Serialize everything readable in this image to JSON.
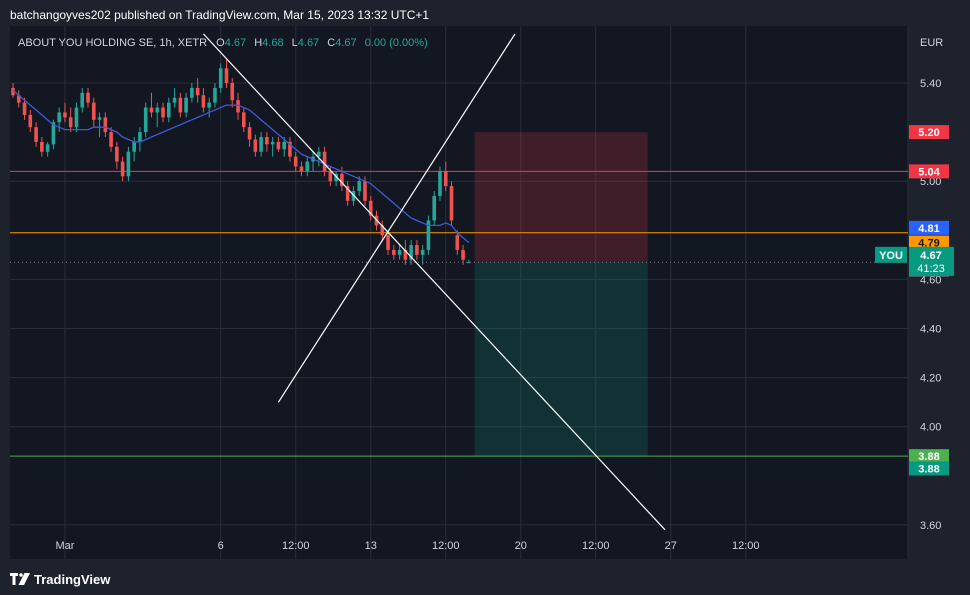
{
  "header": {
    "published": "batchangoyves202 published on TradingView.com, Mar 15, 2023 13:32 UTC+1"
  },
  "legend": {
    "symbol": "ABOUT YOU HOLDING SE, 1h, XETR",
    "o_label": "O",
    "o_value": "4.67",
    "h_label": "H",
    "h_value": "4.68",
    "l_label": "L",
    "l_value": "4.67",
    "c_label": "C",
    "c_value": "4.67",
    "change": "0.00 (0.00%)"
  },
  "footer": {
    "brand": "TradingView"
  },
  "colors": {
    "up": "#26a69a",
    "down": "#ef5350",
    "ma": "#2962ff",
    "ma_line": "#3d5bd9",
    "bg": "#131722",
    "grid": "#2a2e39"
  },
  "chart_data": {
    "type": "candlestick",
    "currency": "EUR",
    "ylim": [
      3.55,
      5.6
    ],
    "y_ticks": [
      {
        "value": 5.4,
        "label": "5.40"
      },
      {
        "value": 5.0,
        "label": "5.00"
      },
      {
        "value": 4.6,
        "label": "4.60"
      },
      {
        "value": 4.4,
        "label": "4.40"
      },
      {
        "value": 4.2,
        "label": "4.20"
      },
      {
        "value": 4.0,
        "label": "4.00"
      },
      {
        "value": 3.6,
        "label": "3.60"
      }
    ],
    "x_ticks": [
      {
        "t": 9,
        "label": "Mar"
      },
      {
        "t": 36,
        "label": "6"
      },
      {
        "t": 49,
        "label": "12:00"
      },
      {
        "t": 62,
        "label": "13"
      },
      {
        "t": 75,
        "label": "12:00"
      },
      {
        "t": 88,
        "label": "20"
      },
      {
        "t": 101,
        "label": "12:00"
      },
      {
        "t": 114,
        "label": "27"
      },
      {
        "t": 127,
        "label": "12:00"
      }
    ],
    "candles": [
      [
        5.38,
        5.4,
        5.34,
        5.35
      ],
      [
        5.35,
        5.37,
        5.3,
        5.32
      ],
      [
        5.32,
        5.34,
        5.25,
        5.27
      ],
      [
        5.27,
        5.29,
        5.2,
        5.22
      ],
      [
        5.22,
        5.24,
        5.14,
        5.16
      ],
      [
        5.16,
        5.18,
        5.1,
        5.12
      ],
      [
        5.12,
        5.16,
        5.1,
        5.15
      ],
      [
        5.15,
        5.25,
        5.13,
        5.24
      ],
      [
        5.24,
        5.3,
        5.2,
        5.28
      ],
      [
        5.28,
        5.32,
        5.24,
        5.26
      ],
      [
        5.26,
        5.3,
        5.2,
        5.22
      ],
      [
        5.22,
        5.32,
        5.2,
        5.3
      ],
      [
        5.3,
        5.38,
        5.28,
        5.36
      ],
      [
        5.36,
        5.38,
        5.3,
        5.32
      ],
      [
        5.32,
        5.34,
        5.22,
        5.25
      ],
      [
        5.25,
        5.28,
        5.18,
        5.26
      ],
      [
        5.26,
        5.28,
        5.18,
        5.2
      ],
      [
        5.2,
        5.22,
        5.12,
        5.14
      ],
      [
        5.14,
        5.16,
        5.05,
        5.08
      ],
      [
        5.08,
        5.1,
        5.0,
        5.02
      ],
      [
        5.02,
        5.14,
        5.0,
        5.12
      ],
      [
        5.12,
        5.18,
        5.08,
        5.16
      ],
      [
        5.16,
        5.22,
        5.12,
        5.2
      ],
      [
        5.2,
        5.32,
        5.18,
        5.3
      ],
      [
        5.3,
        5.36,
        5.26,
        5.28
      ],
      [
        5.28,
        5.32,
        5.22,
        5.3
      ],
      [
        5.3,
        5.32,
        5.24,
        5.26
      ],
      [
        5.26,
        5.34,
        5.24,
        5.32
      ],
      [
        5.32,
        5.38,
        5.3,
        5.34
      ],
      [
        5.34,
        5.36,
        5.26,
        5.28
      ],
      [
        5.28,
        5.36,
        5.26,
        5.34
      ],
      [
        5.34,
        5.4,
        5.32,
        5.38
      ],
      [
        5.38,
        5.42,
        5.32,
        5.35
      ],
      [
        5.35,
        5.38,
        5.28,
        5.3
      ],
      [
        5.3,
        5.34,
        5.26,
        5.32
      ],
      [
        5.32,
        5.4,
        5.3,
        5.38
      ],
      [
        5.38,
        5.48,
        5.36,
        5.46
      ],
      [
        5.46,
        5.5,
        5.38,
        5.4
      ],
      [
        5.4,
        5.42,
        5.3,
        5.33
      ],
      [
        5.33,
        5.36,
        5.25,
        5.28
      ],
      [
        5.28,
        5.3,
        5.2,
        5.22
      ],
      [
        5.22,
        5.24,
        5.14,
        5.17
      ],
      [
        5.17,
        5.19,
        5.1,
        5.12
      ],
      [
        5.12,
        5.2,
        5.1,
        5.18
      ],
      [
        5.18,
        5.2,
        5.12,
        5.15
      ],
      [
        5.15,
        5.18,
        5.1,
        5.16
      ],
      [
        5.16,
        5.18,
        5.12,
        5.13
      ],
      [
        5.13,
        5.18,
        5.1,
        5.16
      ],
      [
        5.16,
        5.18,
        5.08,
        5.1
      ],
      [
        5.1,
        5.12,
        5.04,
        5.06
      ],
      [
        5.06,
        5.08,
        5.02,
        5.04
      ],
      [
        5.04,
        5.1,
        5.02,
        5.08
      ],
      [
        5.08,
        5.12,
        5.04,
        5.1
      ],
      [
        5.1,
        5.14,
        5.06,
        5.12
      ],
      [
        5.12,
        5.14,
        5.02,
        5.04
      ],
      [
        5.04,
        5.06,
        4.98,
        5.0
      ],
      [
        5.0,
        5.04,
        4.98,
        5.03
      ],
      [
        5.03,
        5.06,
        4.96,
        4.98
      ],
      [
        4.98,
        5.0,
        4.9,
        4.92
      ],
      [
        4.92,
        4.98,
        4.9,
        4.96
      ],
      [
        4.96,
        5.02,
        4.94,
        5.0
      ],
      [
        5.0,
        5.02,
        4.9,
        4.92
      ],
      [
        4.92,
        4.94,
        4.84,
        4.86
      ],
      [
        4.86,
        4.88,
        4.8,
        4.82
      ],
      [
        4.82,
        4.84,
        4.76,
        4.78
      ],
      [
        4.78,
        4.8,
        4.7,
        4.72
      ],
      [
        4.72,
        4.74,
        4.68,
        4.7
      ],
      [
        4.7,
        4.74,
        4.68,
        4.72
      ],
      [
        4.72,
        4.76,
        4.66,
        4.68
      ],
      [
        4.68,
        4.76,
        4.66,
        4.74
      ],
      [
        4.74,
        4.76,
        4.68,
        4.7
      ],
      [
        4.7,
        4.74,
        4.66,
        4.72
      ],
      [
        4.72,
        4.86,
        4.7,
        4.84
      ],
      [
        4.84,
        4.96,
        4.82,
        4.94
      ],
      [
        4.94,
        5.06,
        4.92,
        5.04
      ],
      [
        5.04,
        5.08,
        4.96,
        4.98
      ],
      [
        4.98,
        5.0,
        4.82,
        4.84
      ],
      [
        4.78,
        4.8,
        4.7,
        4.72
      ],
      [
        4.72,
        4.74,
        4.66,
        4.68
      ],
      [
        4.67,
        4.68,
        4.67,
        4.67
      ]
    ],
    "moving_average": [
      5.37,
      5.35,
      5.33,
      5.31,
      5.29,
      5.27,
      5.25,
      5.23,
      5.22,
      5.21,
      5.21,
      5.21,
      5.21,
      5.21,
      5.22,
      5.22,
      5.22,
      5.21,
      5.2,
      5.18,
      5.17,
      5.16,
      5.16,
      5.17,
      5.18,
      5.19,
      5.2,
      5.21,
      5.22,
      5.23,
      5.24,
      5.25,
      5.26,
      5.27,
      5.28,
      5.29,
      5.3,
      5.31,
      5.31,
      5.31,
      5.3,
      5.29,
      5.27,
      5.25,
      5.23,
      5.21,
      5.19,
      5.17,
      5.15,
      5.13,
      5.11,
      5.1,
      5.09,
      5.08,
      5.07,
      5.06,
      5.05,
      5.04,
      5.03,
      5.02,
      5.01,
      5.0,
      4.99,
      4.97,
      4.95,
      4.93,
      4.91,
      4.89,
      4.87,
      4.85,
      4.84,
      4.83,
      4.82,
      4.82,
      4.82,
      4.83,
      4.82,
      4.79,
      4.77,
      4.75
    ],
    "horizontal_lines": [
      {
        "value": 5.04,
        "color": "#f23645"
      },
      {
        "value": 4.79,
        "color": "#ff9800"
      },
      {
        "value": 3.88,
        "color": "#4caf50"
      }
    ],
    "position": {
      "entry": 4.67,
      "stop": 5.2,
      "target": 3.88,
      "t_start": 80,
      "t_end": 110
    },
    "trend_lines": [
      {
        "t1": 33,
        "v1": 5.6,
        "t2": 113,
        "v2": 3.58
      },
      {
        "t1": 46,
        "v1": 4.1,
        "t2": 87,
        "v2": 5.6
      }
    ],
    "price_labels": [
      {
        "value": 5.2,
        "label": "5.20",
        "bg": "#f23645",
        "fg": "#ffffff"
      },
      {
        "value": 5.04,
        "label": "5.04",
        "bg": "#f23645",
        "fg": "#ffffff"
      },
      {
        "value": 4.81,
        "label": "4.81",
        "bg": "#2962ff",
        "fg": "#ffffff"
      },
      {
        "value": 4.75,
        "label": "4.79",
        "bg": "#ff9800",
        "fg": "#131722"
      },
      {
        "value": 4.64,
        "label": "4.67",
        "bg": "#787b86",
        "fg": "#ffffff"
      },
      {
        "value": 3.88,
        "label": "3.88",
        "bg": "#4caf50",
        "fg": "#ffffff"
      },
      {
        "value": 3.83,
        "label": "3.88",
        "bg": "#089981",
        "fg": "#ffffff"
      }
    ],
    "last_price": {
      "value": 4.7,
      "symbol": "YOU",
      "price": "4.67",
      "countdown": "41:23",
      "bg": "#089981"
    }
  }
}
